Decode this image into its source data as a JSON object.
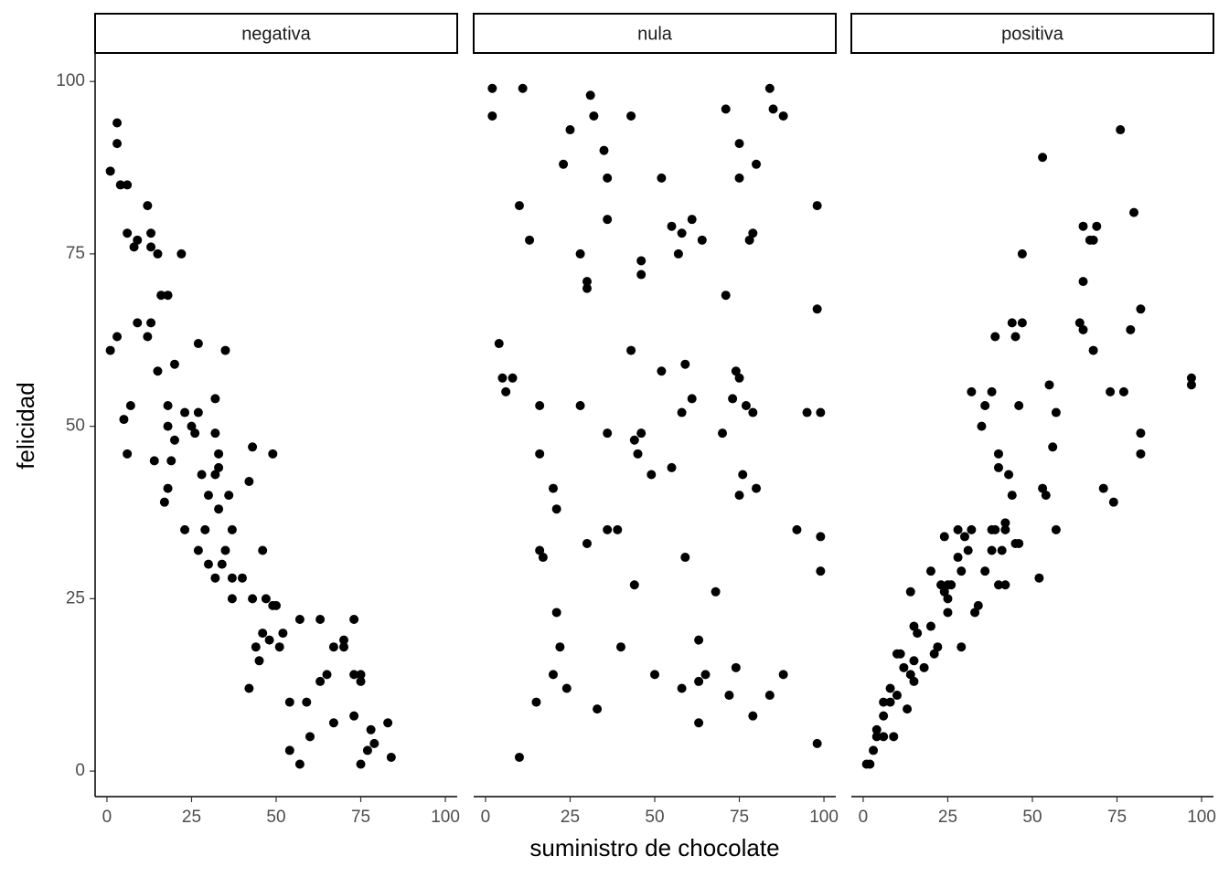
{
  "chart_data": {
    "type": "scatter",
    "xlabel": "suministro de chocolate",
    "ylabel": "felicidad",
    "color": "#000000",
    "xlim": [
      -3.5,
      103.5
    ],
    "ylim": [
      -3.7,
      104
    ],
    "xticks": [
      0,
      25,
      50,
      75,
      100
    ],
    "yticks": [
      0,
      25,
      50,
      75,
      100
    ],
    "panels": [
      {
        "title": "negativa",
        "x": [
          1,
          3,
          3,
          4,
          6,
          12,
          6,
          9,
          8,
          13,
          13,
          15,
          22,
          16,
          18,
          1,
          3,
          9,
          13,
          12,
          27,
          35,
          15,
          20,
          7,
          5,
          6,
          18,
          23,
          27,
          18,
          20,
          25,
          26,
          32,
          32,
          14,
          19,
          33,
          43,
          49,
          33,
          28,
          32,
          30,
          36,
          42,
          18,
          17,
          33,
          23,
          29,
          37,
          27,
          35,
          46,
          30,
          34,
          32,
          37,
          40,
          37,
          43,
          47,
          49,
          50,
          46,
          48,
          52,
          44,
          51,
          57,
          63,
          73,
          45,
          70,
          67,
          70,
          65,
          63,
          73,
          75,
          75,
          42,
          54,
          59,
          73,
          60,
          67,
          83,
          78,
          79,
          77,
          54,
          57,
          75,
          84
        ],
        "y": [
          87,
          94,
          91,
          85,
          85,
          82,
          78,
          77,
          76,
          78,
          76,
          75,
          75,
          69,
          69,
          61,
          63,
          65,
          65,
          63,
          62,
          61,
          58,
          59,
          53,
          51,
          46,
          53,
          52,
          52,
          50,
          48,
          50,
          49,
          54,
          49,
          45,
          45,
          46,
          47,
          46,
          44,
          43,
          43,
          40,
          40,
          42,
          41,
          39,
          38,
          35,
          35,
          35,
          32,
          32,
          32,
          30,
          30,
          28,
          28,
          28,
          25,
          25,
          25,
          24,
          24,
          20,
          19,
          20,
          18,
          18,
          22,
          22,
          22,
          16,
          19,
          18,
          18,
          14,
          13,
          14,
          14,
          13,
          12,
          10,
          10,
          8,
          5,
          7,
          7,
          6,
          4,
          3,
          3,
          1,
          1,
          2
        ]
      },
      {
        "title": "nula",
        "x": [
          2,
          11,
          2,
          31,
          32,
          25,
          43,
          35,
          23,
          36,
          52,
          10,
          13,
          36,
          28,
          30,
          30,
          46,
          46,
          55,
          58,
          61,
          64,
          57,
          84,
          71,
          85,
          88,
          75,
          75,
          80,
          79,
          78,
          98,
          71,
          98,
          4,
          5,
          8,
          6,
          16,
          28,
          43,
          52,
          59,
          61,
          58,
          36,
          46,
          44,
          45,
          49,
          55,
          16,
          20,
          21,
          74,
          75,
          73,
          77,
          79,
          70,
          76,
          80,
          75,
          95,
          99,
          92,
          99,
          99,
          36,
          39,
          30,
          16,
          17,
          59,
          44,
          68,
          21,
          22,
          40,
          63,
          20,
          50,
          65,
          74,
          88,
          63,
          24,
          58,
          15,
          33,
          72,
          84,
          79,
          63,
          10,
          98
        ],
        "y": [
          99,
          99,
          95,
          98,
          95,
          93,
          95,
          90,
          88,
          86,
          86,
          82,
          77,
          80,
          75,
          71,
          70,
          74,
          72,
          79,
          78,
          80,
          77,
          75,
          99,
          96,
          96,
          95,
          91,
          86,
          88,
          78,
          77,
          82,
          69,
          67,
          62,
          57,
          57,
          55,
          53,
          53,
          61,
          58,
          59,
          54,
          52,
          49,
          49,
          48,
          46,
          43,
          44,
          46,
          41,
          38,
          58,
          57,
          54,
          53,
          52,
          49,
          43,
          41,
          40,
          52,
          52,
          35,
          34,
          29,
          35,
          35,
          33,
          32,
          31,
          31,
          27,
          26,
          23,
          18,
          18,
          19,
          14,
          14,
          14,
          15,
          14,
          13,
          12,
          12,
          10,
          9,
          11,
          11,
          8,
          7,
          2,
          4
        ]
      },
      {
        "title": "positiva",
        "x": [
          1,
          2,
          3,
          4,
          4,
          6,
          9,
          6,
          6,
          8,
          8,
          10,
          13,
          10,
          11,
          12,
          14,
          15,
          15,
          18,
          14,
          15,
          16,
          20,
          20,
          21,
          22,
          23,
          25,
          24,
          25,
          24,
          26,
          25,
          29,
          28,
          28,
          29,
          30,
          31,
          32,
          33,
          34,
          32,
          35,
          36,
          36,
          38,
          38,
          39,
          40,
          42,
          41,
          39,
          38,
          40,
          40,
          42,
          42,
          43,
          44,
          44,
          45,
          47,
          47,
          45,
          46,
          46,
          53,
          53,
          54,
          52,
          55,
          56,
          57,
          57,
          65,
          69,
          67,
          68,
          65,
          64,
          65,
          68,
          76,
          80,
          73,
          77,
          79,
          82,
          82,
          82,
          71,
          74,
          97,
          97
        ],
        "y": [
          1,
          1,
          3,
          6,
          5,
          5,
          5,
          8,
          10,
          10,
          12,
          11,
          9,
          17,
          17,
          15,
          14,
          13,
          16,
          15,
          26,
          21,
          20,
          21,
          29,
          17,
          18,
          27,
          27,
          34,
          25,
          26,
          27,
          23,
          18,
          35,
          31,
          29,
          34,
          32,
          35,
          23,
          24,
          55,
          50,
          53,
          29,
          35,
          32,
          35,
          27,
          27,
          32,
          63,
          55,
          46,
          44,
          36,
          35,
          43,
          40,
          65,
          63,
          65,
          75,
          33,
          33,
          53,
          89,
          41,
          40,
          28,
          56,
          47,
          52,
          35,
          79,
          79,
          77,
          77,
          71,
          65,
          64,
          61,
          93,
          81,
          55,
          55,
          64,
          67,
          49,
          46,
          41,
          39,
          57,
          56
        ]
      }
    ]
  }
}
